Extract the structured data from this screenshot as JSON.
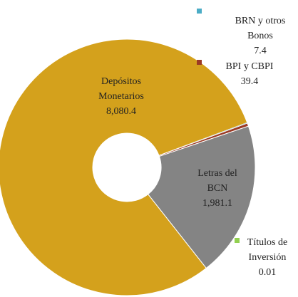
{
  "chart_data": {
    "type": "donut",
    "categories": [
      "Depósitos Monetarios",
      "BRN y otros Bonos",
      "BPI y CBPI",
      "Letras del BCN",
      "Títulos de Inversión"
    ],
    "values": [
      8080.4,
      7.4,
      39.4,
      1981.1,
      0.01
    ],
    "value_labels": [
      "8,080.4",
      "7.4",
      "39.4",
      "1,981.1",
      "0.01"
    ],
    "colors": [
      "#d4a11c",
      "#4bacc6",
      "#9b3a25",
      "#848484",
      "#92d050"
    ]
  }
}
